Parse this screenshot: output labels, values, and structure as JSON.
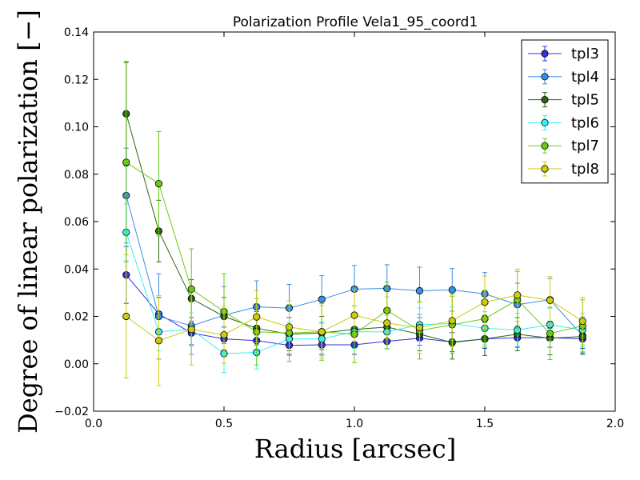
{
  "chart_data": {
    "type": "scatter",
    "title": "Polarization Profile Vela1_95_coord1",
    "xlabel": "Radius [arcsec]",
    "ylabel": "Degree of linear polarization [−]",
    "xlim": [
      0.0,
      2.0
    ],
    "ylim": [
      -0.02,
      0.14
    ],
    "x_ticks": [
      0.0,
      0.5,
      1.0,
      1.5,
      2.0
    ],
    "x_tick_labels": [
      "0.0",
      "0.5",
      "1.0",
      "1.5",
      "2.0"
    ],
    "y_ticks": [
      -0.02,
      0.0,
      0.02,
      0.04,
      0.06,
      0.08,
      0.1,
      0.12,
      0.14
    ],
    "y_tick_labels": [
      "−0.02",
      "0.00",
      "0.02",
      "0.04",
      "0.06",
      "0.08",
      "0.10",
      "0.12",
      "0.14"
    ],
    "grid": false,
    "legend_position": "top-right",
    "x": [
      0.125,
      0.25,
      0.375,
      0.5,
      0.625,
      0.75,
      0.875,
      1.0,
      1.125,
      1.25,
      1.375,
      1.5,
      1.625,
      1.75,
      1.875
    ],
    "series": [
      {
        "name": "tpl3",
        "color": "#3333dd",
        "values": [
          0.0375,
          0.021,
          0.013,
          0.0105,
          0.0098,
          0.0078,
          0.008,
          0.008,
          0.0095,
          0.0108,
          0.0092,
          0.0105,
          0.011,
          0.011,
          0.0105
        ],
        "errors": [
          0.012,
          0.007,
          0.005,
          0.005,
          0.004,
          0.004,
          0.004,
          0.004,
          0.003,
          0.003,
          0.004,
          0.004,
          0.004,
          0.004,
          0.004
        ]
      },
      {
        "name": "tpl4",
        "color": "#3a8ee6",
        "values": [
          0.071,
          0.02,
          0.016,
          0.0205,
          0.024,
          0.0235,
          0.0272,
          0.0315,
          0.0318,
          0.0308,
          0.0312,
          0.0295,
          0.025,
          0.027,
          0.0118
        ],
        "errors": [
          0.02,
          0.018,
          0.012,
          0.012,
          0.011,
          0.01,
          0.01,
          0.01,
          0.01,
          0.01,
          0.009,
          0.009,
          0.009,
          0.009,
          0.008
        ]
      },
      {
        "name": "tpl5",
        "color": "#2d6610",
        "values": [
          0.1055,
          0.056,
          0.0275,
          0.02,
          0.015,
          0.0125,
          0.013,
          0.0145,
          0.0155,
          0.0125,
          0.009,
          0.0105,
          0.0125,
          0.0108,
          0.0115
        ],
        "errors": [
          0.022,
          0.013,
          0.008,
          0.008,
          0.007,
          0.007,
          0.007,
          0.007,
          0.007,
          0.007,
          0.007,
          0.007,
          0.007,
          0.007,
          0.007
        ]
      },
      {
        "name": "tpl6",
        "color": "#33f2f2",
        "values": [
          0.0555,
          0.0135,
          0.0145,
          0.0043,
          0.0048,
          0.0105,
          0.0105,
          0.0135,
          0.0135,
          0.0165,
          0.017,
          0.015,
          0.0143,
          0.0165,
          0.0143
        ],
        "errors": [
          0.012,
          0.008,
          0.007,
          0.008,
          0.007,
          0.007,
          0.007,
          0.007,
          0.007,
          0.007,
          0.007,
          0.007,
          0.007,
          0.007,
          0.007
        ]
      },
      {
        "name": "tpl7",
        "color": "#66cc11",
        "values": [
          0.085,
          0.076,
          0.0315,
          0.022,
          0.0135,
          0.013,
          0.0135,
          0.0125,
          0.0225,
          0.014,
          0.0165,
          0.019,
          0.027,
          0.0128,
          0.016
        ],
        "errors": [
          0.042,
          0.022,
          0.017,
          0.016,
          0.014,
          0.012,
          0.012,
          0.012,
          0.012,
          0.012,
          0.012,
          0.012,
          0.012,
          0.011,
          0.011
        ]
      },
      {
        "name": "tpl8",
        "color": "#cccc11",
        "values": [
          0.02,
          0.0098,
          0.0145,
          0.0122,
          0.0198,
          0.0155,
          0.0135,
          0.0205,
          0.0172,
          0.0152,
          0.0182,
          0.026,
          0.029,
          0.0268,
          0.018
        ],
        "errors": [
          0.026,
          0.019,
          0.015,
          0.012,
          0.011,
          0.011,
          0.011,
          0.011,
          0.011,
          0.011,
          0.011,
          0.011,
          0.011,
          0.01,
          0.01
        ]
      }
    ]
  }
}
